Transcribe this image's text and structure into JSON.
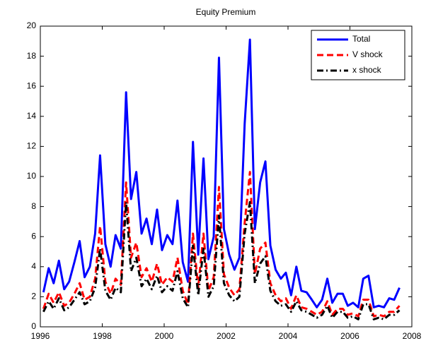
{
  "chart_data": {
    "type": "line",
    "title": "Equity Premium",
    "x": [
      1996.1,
      1996.27,
      1996.43,
      1996.6,
      1996.77,
      1996.93,
      1997.1,
      1997.27,
      1997.43,
      1997.6,
      1997.77,
      1997.93,
      1998.1,
      1998.27,
      1998.43,
      1998.6,
      1998.77,
      1998.93,
      1999.1,
      1999.27,
      1999.43,
      1999.6,
      1999.77,
      1999.93,
      2000.1,
      2000.27,
      2000.43,
      2000.6,
      2000.77,
      2000.93,
      2001.1,
      2001.27,
      2001.43,
      2001.6,
      2001.77,
      2001.93,
      2002.1,
      2002.27,
      2002.43,
      2002.6,
      2002.77,
      2002.93,
      2003.1,
      2003.27,
      2003.43,
      2003.6,
      2003.77,
      2003.93,
      2004.1,
      2004.27,
      2004.43,
      2004.6,
      2004.77,
      2004.93,
      2005.1,
      2005.27,
      2005.43,
      2005.6,
      2005.77,
      2005.93,
      2006.1,
      2006.27,
      2006.43,
      2006.6,
      2006.77,
      2006.93,
      2007.1,
      2007.27,
      2007.43,
      2007.6
    ],
    "series": [
      {
        "name": "Total",
        "color": "#0000ff",
        "dash": "",
        "values": [
          2.3,
          3.9,
          2.9,
          4.4,
          2.5,
          3.0,
          4.3,
          5.7,
          3.3,
          4.0,
          6.2,
          11.4,
          5.5,
          4.0,
          6.1,
          5.2,
          15.6,
          8.5,
          10.3,
          6.2,
          7.2,
          5.5,
          7.8,
          5.1,
          6.1,
          5.5,
          8.4,
          4.3,
          3.0,
          12.3,
          4.8,
          11.2,
          4.5,
          6.0,
          17.9,
          6.5,
          4.8,
          3.8,
          4.6,
          13.5,
          19.1,
          6.5,
          9.6,
          11.0,
          5.4,
          3.8,
          3.2,
          3.6,
          2.1,
          4.0,
          2.4,
          2.3,
          1.8,
          1.3,
          1.8,
          3.2,
          1.6,
          2.2,
          2.2,
          1.4,
          1.6,
          1.3,
          3.2,
          3.4,
          1.3,
          1.4,
          1.3,
          1.9,
          1.8,
          2.6
        ]
      },
      {
        "name": "V shock",
        "color": "#ff0000",
        "dash": "9 5",
        "values": [
          1.2,
          2.2,
          1.6,
          2.3,
          1.4,
          1.6,
          2.2,
          2.9,
          1.8,
          2.0,
          3.2,
          6.7,
          3.0,
          2.2,
          3.2,
          2.8,
          9.6,
          4.6,
          5.6,
          3.3,
          3.9,
          3.0,
          4.2,
          2.8,
          3.3,
          3.0,
          4.6,
          2.4,
          1.5,
          6.2,
          2.6,
          6.2,
          2.4,
          3.3,
          9.3,
          3.5,
          2.6,
          2.1,
          2.5,
          6.9,
          10.3,
          3.5,
          5.2,
          5.6,
          2.9,
          2.1,
          1.7,
          1.9,
          1.2,
          2.1,
          1.3,
          1.2,
          1.0,
          0.8,
          1.0,
          1.7,
          0.8,
          1.2,
          1.2,
          0.8,
          0.9,
          0.7,
          1.8,
          1.8,
          0.7,
          0.8,
          0.7,
          1.0,
          1.0,
          1.4
        ]
      },
      {
        "name": "x shock",
        "color": "#000000",
        "dash": "9 4 2 4",
        "values": [
          1.0,
          1.7,
          1.2,
          1.9,
          1.1,
          1.3,
          1.8,
          2.3,
          1.5,
          1.7,
          2.6,
          5.2,
          2.4,
          1.8,
          2.6,
          2.3,
          8.3,
          3.7,
          4.6,
          2.7,
          3.2,
          2.5,
          3.4,
          2.3,
          2.7,
          2.4,
          3.7,
          1.9,
          1.3,
          5.4,
          2.1,
          5.2,
          2.0,
          2.7,
          7.4,
          2.9,
          2.1,
          1.7,
          2.0,
          6.2,
          8.3,
          2.9,
          4.2,
          4.7,
          2.4,
          1.7,
          1.4,
          1.5,
          1.0,
          1.7,
          1.1,
          1.0,
          0.8,
          0.6,
          0.8,
          1.4,
          0.6,
          1.0,
          1.0,
          0.6,
          0.7,
          0.5,
          1.5,
          1.5,
          0.5,
          0.6,
          0.5,
          0.8,
          0.8,
          1.1
        ]
      }
    ],
    "xlim": [
      1996,
      2008
    ],
    "xticks": [
      1996,
      1998,
      2000,
      2002,
      2004,
      2006,
      2008
    ],
    "ylim": [
      0,
      20
    ],
    "yticks": [
      0,
      2,
      4,
      6,
      8,
      10,
      12,
      14,
      16,
      18,
      20
    ],
    "legend": "top-right"
  }
}
